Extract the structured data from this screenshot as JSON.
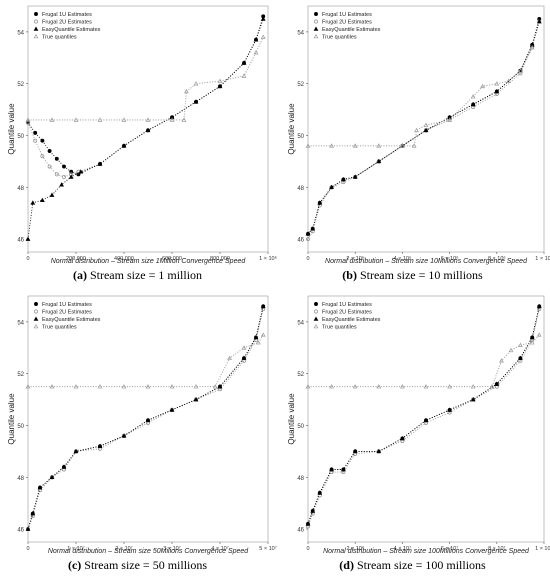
{
  "legend_labels": [
    "Frugal 1U Estimates",
    "Frugal 2U Estimates",
    "EasyQuantile Estimates",
    "True quantiles"
  ],
  "series_colors": {
    "frugal1u": "#000000",
    "frugal2u": "#8c8c8c",
    "easyquantile": "#000000",
    "true": "#9a9a9a"
  },
  "chart_data": [
    {
      "type": "scatter",
      "caption_letter": "(a)",
      "caption_text": "Stream size = 1 million",
      "xlabel": "Normal distribution – Stream size 1Million Convergence Speed",
      "ylabel": "Quantile value",
      "xlim": [
        0,
        1000000
      ],
      "ylim": [
        45.5,
        55
      ],
      "x_ticks": [
        0,
        200000,
        400000,
        600000,
        800000,
        1000000
      ],
      "x_tick_labels": [
        "0",
        "200,000",
        "400,000",
        "600,000",
        "800,000",
        "1 × 10⁶"
      ],
      "y_ticks": [
        46,
        48,
        50,
        52,
        54
      ],
      "y_tick_labels": [
        "46",
        "48",
        "50",
        "52",
        "54"
      ],
      "series": [
        {
          "name": "Frugal 1U Estimates",
          "x": [
            0,
            30000,
            60000,
            90000,
            120000,
            150000,
            180000,
            210000,
            300000,
            400000,
            500000,
            600000,
            700000,
            800000,
            900000,
            950000,
            980000
          ],
          "y": [
            50.5,
            50.1,
            49.8,
            49.4,
            49.1,
            48.8,
            48.6,
            48.5,
            48.9,
            49.6,
            50.2,
            50.7,
            51.3,
            51.9,
            52.8,
            53.7,
            54.6
          ]
        },
        {
          "name": "Frugal 2U Estimates",
          "x": [
            0,
            30000,
            60000,
            90000,
            120000,
            150000,
            180000,
            210000
          ],
          "y": [
            50.5,
            49.8,
            49.2,
            48.8,
            48.5,
            48.4,
            48.5,
            48.6
          ]
        },
        {
          "name": "EasyQuantile Estimates",
          "x": [
            0,
            20000,
            60000,
            100000,
            140000,
            180000,
            220000,
            300000,
            400000,
            500000,
            600000,
            700000,
            800000,
            900000,
            950000,
            980000
          ],
          "y": [
            46.0,
            47.4,
            47.5,
            47.7,
            48.1,
            48.4,
            48.6,
            48.9,
            49.6,
            50.2,
            50.7,
            51.3,
            51.9,
            52.8,
            53.7,
            54.5
          ]
        },
        {
          "name": "True quantiles",
          "x": [
            0,
            100000,
            200000,
            300000,
            400000,
            500000,
            600000,
            650000,
            660000,
            700000,
            800000,
            900000,
            950000,
            980000
          ],
          "y": [
            50.6,
            50.6,
            50.6,
            50.6,
            50.6,
            50.6,
            50.6,
            50.6,
            51.7,
            52.0,
            52.1,
            52.3,
            53.2,
            53.8
          ]
        }
      ]
    },
    {
      "type": "scatter",
      "caption_letter": "(b)",
      "caption_text": "Stream size = 10 millions",
      "xlabel": "Normal distribution – Stream size 10Millions Convergence Speed",
      "ylabel": "Quantile value",
      "xlim": [
        0,
        10000000
      ],
      "ylim": [
        45.5,
        55
      ],
      "x_ticks": [
        0,
        2000000,
        4000000,
        6000000,
        8000000,
        10000000
      ],
      "x_tick_labels": [
        "0",
        "2 × 10⁶",
        "4 × 10⁶",
        "6 × 10⁶",
        "8 × 10⁶",
        "1 × 10⁷"
      ],
      "y_ticks": [
        46,
        48,
        50,
        52,
        54
      ],
      "y_tick_labels": [
        "46",
        "48",
        "50",
        "52",
        "54"
      ],
      "series": [
        {
          "name": "Frugal 1U Estimates",
          "x": [
            0,
            200000,
            500000,
            1000000,
            1500000,
            2000000,
            3000000,
            4000000,
            5000000,
            6000000,
            7000000,
            8000000,
            9000000,
            9500000,
            9800000
          ],
          "y": [
            46.2,
            46.4,
            47.4,
            48.0,
            48.3,
            48.4,
            49.0,
            49.6,
            50.2,
            50.7,
            51.2,
            51.7,
            52.5,
            53.5,
            54.5
          ]
        },
        {
          "name": "Frugal 2U Estimates",
          "x": [
            0,
            200000,
            500000,
            1000000,
            1500000,
            2000000,
            3000000,
            4000000,
            5000000,
            6000000,
            7000000,
            8000000,
            9000000,
            9500000,
            9800000
          ],
          "y": [
            46.0,
            46.3,
            47.3,
            48.0,
            48.2,
            48.4,
            49.0,
            49.6,
            50.2,
            50.6,
            51.1,
            51.6,
            52.4,
            53.4,
            54.4
          ]
        },
        {
          "name": "EasyQuantile Estimates",
          "x": [
            0,
            200000,
            500000,
            1000000,
            1500000,
            2000000,
            3000000,
            4000000,
            5000000,
            6000000,
            7000000,
            8000000,
            9000000,
            9500000,
            9800000
          ],
          "y": [
            46.2,
            46.4,
            47.4,
            48.0,
            48.3,
            48.4,
            49.0,
            49.6,
            50.2,
            50.7,
            51.2,
            51.7,
            52.5,
            53.5,
            54.4
          ]
        },
        {
          "name": "True quantiles",
          "x": [
            0,
            1000000,
            2000000,
            3000000,
            4000000,
            4500000,
            4600000,
            5000000,
            6000000,
            7000000,
            7400000,
            8000000,
            8500000,
            9000000,
            9500000
          ],
          "y": [
            49.6,
            49.6,
            49.6,
            49.6,
            49.6,
            49.6,
            50.2,
            50.4,
            50.6,
            51.5,
            51.9,
            52.0,
            52.1,
            52.5,
            53.4
          ]
        }
      ]
    },
    {
      "type": "scatter",
      "caption_letter": "(c)",
      "caption_text": "Stream size = 50 millions",
      "xlabel": "Normal distribution – Stream size 50Milions Convergence Speed",
      "ylabel": "Quantile value",
      "xlim": [
        0,
        50000000
      ],
      "ylim": [
        45.5,
        55
      ],
      "x_ticks": [
        0,
        10000000,
        20000000,
        30000000,
        40000000,
        50000000
      ],
      "x_tick_labels": [
        "0",
        "1 × 10⁷",
        "2 × 10⁷",
        "3 × 10⁷",
        "4 × 10⁷",
        "5 × 10⁷"
      ],
      "y_ticks": [
        46,
        48,
        50,
        52,
        54
      ],
      "y_tick_labels": [
        "46",
        "48",
        "50",
        "52",
        "54"
      ],
      "series": [
        {
          "name": "Frugal 1U Estimates",
          "x": [
            0,
            1000000,
            2500000,
            5000000,
            7500000,
            10000000,
            15000000,
            20000000,
            25000000,
            30000000,
            35000000,
            40000000,
            45000000,
            47500000,
            49000000
          ],
          "y": [
            46.0,
            46.6,
            47.6,
            48.0,
            48.4,
            49.0,
            49.2,
            49.6,
            50.2,
            50.6,
            51.0,
            51.5,
            52.6,
            53.4,
            54.6
          ]
        },
        {
          "name": "Frugal 2U Estimates",
          "x": [
            0,
            1000000,
            2500000,
            5000000,
            7500000,
            10000000,
            15000000,
            20000000,
            25000000,
            30000000,
            35000000,
            40000000,
            45000000,
            47500000,
            49000000
          ],
          "y": [
            46.0,
            46.5,
            47.5,
            48.0,
            48.3,
            49.0,
            49.1,
            49.6,
            50.1,
            50.6,
            51.0,
            51.4,
            52.5,
            53.3,
            54.5
          ]
        },
        {
          "name": "EasyQuantile Estimates",
          "x": [
            0,
            1000000,
            2500000,
            5000000,
            7500000,
            10000000,
            15000000,
            20000000,
            25000000,
            30000000,
            35000000,
            40000000,
            45000000,
            47500000,
            49000000
          ],
          "y": [
            46.0,
            46.6,
            47.6,
            48.0,
            48.4,
            49.0,
            49.2,
            49.6,
            50.2,
            50.6,
            51.0,
            51.5,
            52.6,
            53.4,
            54.6
          ]
        },
        {
          "name": "True quantiles",
          "x": [
            0,
            5000000,
            10000000,
            15000000,
            20000000,
            25000000,
            30000000,
            35000000,
            39000000,
            42000000,
            45000000,
            48000000,
            49000000
          ],
          "y": [
            51.5,
            51.5,
            51.5,
            51.5,
            51.5,
            51.5,
            51.5,
            51.5,
            51.5,
            52.6,
            53.0,
            53.2,
            53.5
          ]
        }
      ]
    },
    {
      "type": "scatter",
      "caption_letter": "(d)",
      "caption_text": "Stream size = 100 millions",
      "xlabel": "Normal distribution – Stream size 100Millions Convergence Speed",
      "ylabel": "Quantile value",
      "xlim": [
        0,
        100000000
      ],
      "ylim": [
        45.5,
        55
      ],
      "x_ticks": [
        0,
        20000000,
        40000000,
        60000000,
        80000000,
        100000000
      ],
      "x_tick_labels": [
        "0",
        "2 × 10⁷",
        "4 × 10⁷",
        "6 × 10⁷",
        "8 × 10⁷",
        "1 × 10⁸"
      ],
      "y_ticks": [
        46,
        48,
        50,
        52,
        54
      ],
      "y_tick_labels": [
        "46",
        "48",
        "50",
        "52",
        "54"
      ],
      "series": [
        {
          "name": "Frugal 1U Estimates",
          "x": [
            0,
            2000000,
            5000000,
            10000000,
            15000000,
            20000000,
            30000000,
            40000000,
            50000000,
            60000000,
            70000000,
            80000000,
            90000000,
            95000000,
            98000000
          ],
          "y": [
            46.2,
            46.7,
            47.4,
            48.3,
            48.3,
            49.0,
            49.0,
            49.5,
            50.2,
            50.6,
            51.0,
            51.6,
            52.6,
            53.4,
            54.6
          ]
        },
        {
          "name": "Frugal 2U Estimates",
          "x": [
            0,
            2000000,
            5000000,
            10000000,
            15000000,
            20000000,
            30000000,
            40000000,
            50000000,
            60000000,
            70000000,
            80000000,
            90000000,
            95000000,
            98000000
          ],
          "y": [
            46.1,
            46.6,
            47.3,
            48.2,
            48.2,
            48.9,
            49.0,
            49.4,
            50.1,
            50.5,
            51.0,
            51.5,
            52.5,
            53.3,
            54.5
          ]
        },
        {
          "name": "EasyQuantile Estimates",
          "x": [
            0,
            2000000,
            5000000,
            10000000,
            15000000,
            20000000,
            30000000,
            40000000,
            50000000,
            60000000,
            70000000,
            80000000,
            90000000,
            95000000,
            98000000
          ],
          "y": [
            46.2,
            46.7,
            47.4,
            48.3,
            48.3,
            49.0,
            49.0,
            49.5,
            50.2,
            50.6,
            51.0,
            51.6,
            52.6,
            53.4,
            54.6
          ]
        },
        {
          "name": "True quantiles",
          "x": [
            0,
            10000000,
            20000000,
            30000000,
            40000000,
            50000000,
            60000000,
            70000000,
            78000000,
            82000000,
            86000000,
            90000000,
            95000000,
            98000000
          ],
          "y": [
            51.5,
            51.5,
            51.5,
            51.5,
            51.5,
            51.5,
            51.5,
            51.5,
            51.5,
            52.5,
            52.9,
            53.1,
            53.2,
            53.5
          ]
        }
      ]
    }
  ]
}
